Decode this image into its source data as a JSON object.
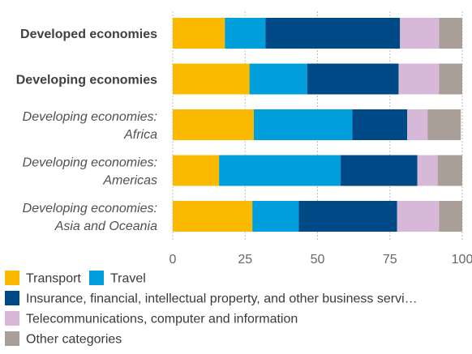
{
  "chart_data": {
    "type": "bar",
    "orientation": "horizontal",
    "stacked": true,
    "title": "",
    "xlabel": "",
    "ylabel": "",
    "xlim": [
      0,
      100
    ],
    "x_ticks": [
      0,
      25,
      50,
      75,
      100
    ],
    "grid": "vertical dotted",
    "legend_position": "bottom",
    "categories": [
      {
        "label_lines": [
          "Developed economies"
        ],
        "style": "bold"
      },
      {
        "label_lines": [
          "Developing economies"
        ],
        "style": "bold"
      },
      {
        "label_lines": [
          "Developing economies:",
          "Africa"
        ],
        "style": "italic"
      },
      {
        "label_lines": [
          "Developing economies:",
          "Americas"
        ],
        "style": "italic"
      },
      {
        "label_lines": [
          "Developing economies:",
          "Asia and Oceania"
        ],
        "style": "italic"
      }
    ],
    "series": [
      {
        "name": "Transport",
        "color": "#FBB900",
        "values": [
          18,
          26.5,
          28,
          16,
          27.5
        ]
      },
      {
        "name": "Travel",
        "color": "#009EDB",
        "values": [
          14,
          20,
          34,
          42,
          16
        ]
      },
      {
        "name": "Insurance, financial, intellectual property, and other business servi…",
        "color": "#004987",
        "values": [
          46.5,
          31.5,
          19,
          26.5,
          34
        ]
      },
      {
        "name": "Telecommunications, computer and information",
        "color": "#D7B8D9",
        "values": [
          13.5,
          14,
          7,
          7,
          14.5
        ]
      },
      {
        "name": "Other categories",
        "color": "#AA9E98",
        "values": [
          8,
          8,
          11.5,
          8.5,
          8
        ]
      }
    ]
  }
}
